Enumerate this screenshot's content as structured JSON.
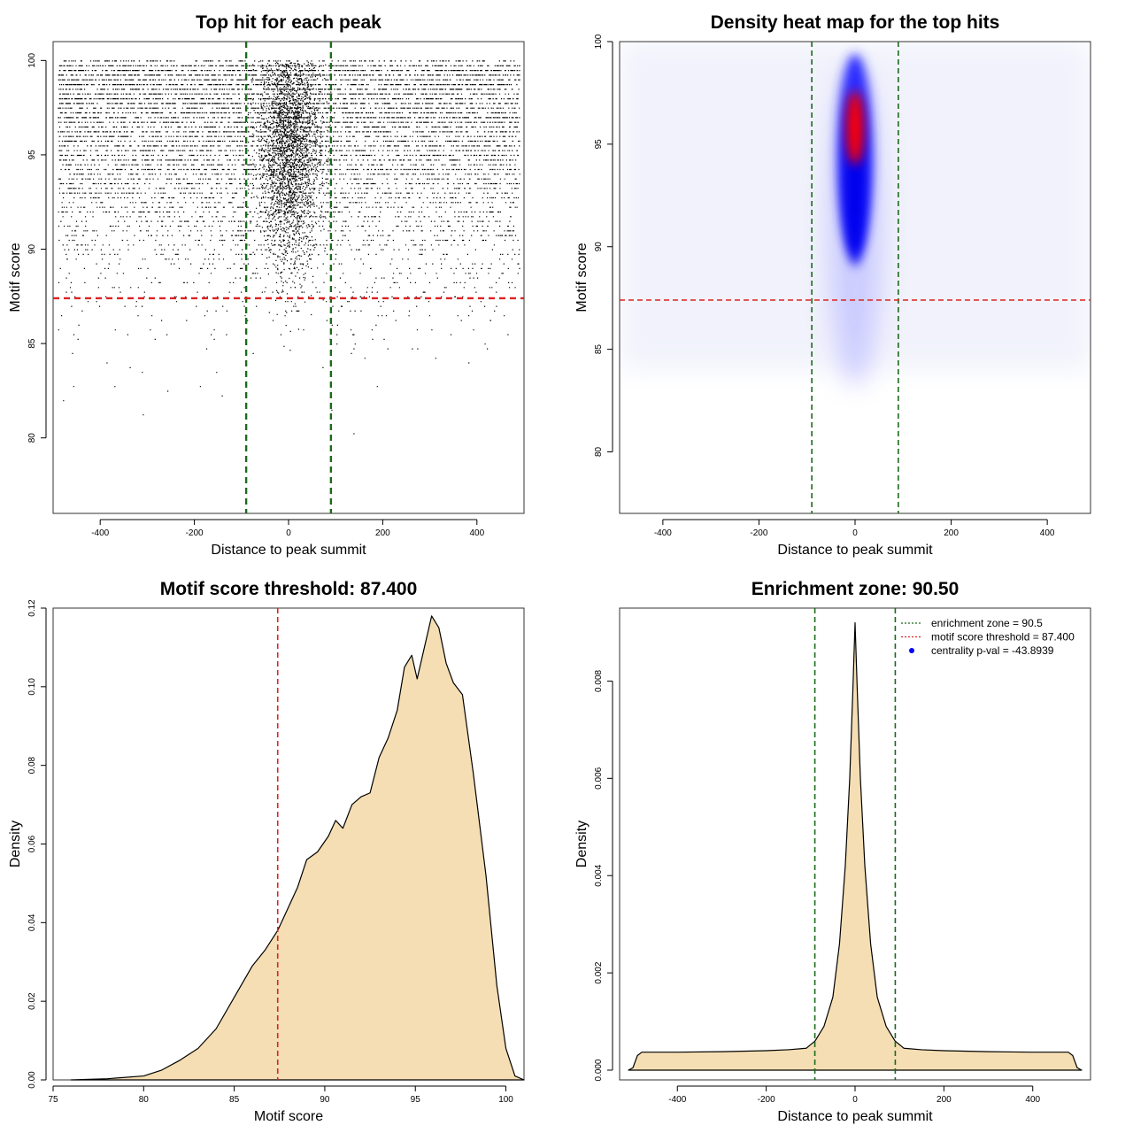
{
  "chart_data": [
    {
      "id": "scatter",
      "type": "scatter",
      "title": "Top hit for each peak",
      "xlabel": "Distance to peak summit",
      "ylabel": "Motif score",
      "xlim": [
        -500,
        500
      ],
      "ylim": [
        76,
        101
      ],
      "xticks": [
        -400,
        -200,
        0,
        200,
        400
      ],
      "yticks": [
        80,
        85,
        90,
        95,
        100
      ],
      "vlines": [
        {
          "x": -90,
          "color": "#1a6b1a"
        },
        {
          "x": 90,
          "color": "#1a6b1a"
        }
      ],
      "hlines": [
        {
          "y": 87.4,
          "color": "#dd2222"
        }
      ],
      "points_description_values": {
        "background_x_range": [
          -490,
          490
        ],
        "background_score_range": [
          78,
          100
        ],
        "central_cluster_x_range": [
          -90,
          90
        ],
        "central_cluster_score_range": [
          84,
          100
        ]
      }
    },
    {
      "id": "heatmap",
      "type": "heatmap",
      "title": "Density heat map for the top hits",
      "xlabel": "Distance to peak summit",
      "ylabel": "Motif score",
      "xlim": [
        -490,
        490
      ],
      "ylim": [
        77,
        100
      ],
      "xticks": [
        -400,
        -200,
        0,
        200,
        400
      ],
      "yticks": [
        80,
        85,
        90,
        95,
        100
      ],
      "vlines": [
        {
          "x": -90,
          "color": "#1a6b1a"
        },
        {
          "x": 90,
          "color": "#1a6b1a"
        }
      ],
      "hlines": [
        {
          "y": 87.4,
          "color": "#dd2222"
        }
      ],
      "hotspot": {
        "x": 0,
        "y": 95.8
      },
      "colors": [
        "#ffffff",
        "#0000ff",
        "#ff0000"
      ]
    },
    {
      "id": "scoredensity",
      "type": "area",
      "title": "Motif score threshold: 87.400",
      "xlabel": "Motif score",
      "ylabel": "Density",
      "xlim": [
        75,
        101
      ],
      "ylim": [
        0,
        0.12
      ],
      "xticks": [
        75,
        80,
        85,
        90,
        95,
        100
      ],
      "yticks": [
        0.0,
        0.02,
        0.04,
        0.06,
        0.08,
        0.1,
        0.12
      ],
      "ytick_labels": [
        "0.00",
        "0.02",
        "0.04",
        "0.06",
        "0.08",
        "0.10",
        "0.12"
      ],
      "vlines": [
        {
          "x": 87.4,
          "color": "#dd2222"
        }
      ],
      "fill": "#f5deb3",
      "x": [
        76,
        78,
        80,
        81,
        82,
        83,
        84,
        85,
        86,
        86.7,
        87.4,
        88,
        88.5,
        89,
        89.6,
        90.2,
        90.6,
        91,
        91.5,
        92,
        92.5,
        93,
        93.5,
        94,
        94.4,
        94.8,
        95.1,
        95.5,
        95.9,
        96.3,
        96.7,
        97.1,
        97.6,
        98.2,
        98.9,
        99.5,
        100,
        100.5,
        101
      ],
      "values": [
        0,
        0.0003,
        0.001,
        0.0025,
        0.005,
        0.008,
        0.013,
        0.021,
        0.029,
        0.033,
        0.038,
        0.044,
        0.049,
        0.056,
        0.058,
        0.062,
        0.066,
        0.064,
        0.07,
        0.072,
        0.073,
        0.082,
        0.087,
        0.094,
        0.105,
        0.108,
        0.102,
        0.11,
        0.118,
        0.115,
        0.106,
        0.101,
        0.098,
        0.078,
        0.052,
        0.024,
        0.008,
        0.001,
        0
      ]
    },
    {
      "id": "enrichment",
      "type": "area",
      "title": "Enrichment zone: 90.50",
      "xlabel": "Distance to peak summit",
      "ylabel": "Density",
      "xlim": [
        -530,
        530
      ],
      "ylim": [
        -0.0002,
        0.0095
      ],
      "xticks": [
        -400,
        -200,
        0,
        200,
        400
      ],
      "yticks": [
        0.0,
        0.002,
        0.004,
        0.006,
        0.008
      ],
      "ytick_labels": [
        "0.000",
        "0.002",
        "0.004",
        "0.006",
        "0.008"
      ],
      "vlines": [
        {
          "x": -90.5,
          "color": "#1a6b1a"
        },
        {
          "x": 90.5,
          "color": "#1a6b1a"
        }
      ],
      "fill": "#f5deb3",
      "x": [
        -510,
        -500,
        -490,
        -480,
        -400,
        -300,
        -200,
        -150,
        -110,
        -90,
        -70,
        -50,
        -35,
        -22,
        -12,
        -5,
        0,
        5,
        12,
        22,
        35,
        50,
        70,
        90,
        110,
        150,
        200,
        300,
        400,
        480,
        490,
        500,
        510
      ],
      "values": [
        0,
        5e-05,
        0.0003,
        0.00037,
        0.00037,
        0.00038,
        0.0004,
        0.00042,
        0.00045,
        0.0006,
        0.0009,
        0.0015,
        0.0026,
        0.0042,
        0.006,
        0.0078,
        0.0092,
        0.0078,
        0.006,
        0.0042,
        0.0026,
        0.0015,
        0.0009,
        0.0006,
        0.00045,
        0.00042,
        0.0004,
        0.00038,
        0.00037,
        0.00037,
        0.0003,
        5e-05,
        0
      ],
      "legend": [
        {
          "label": "enrichment zone = 90.5",
          "kind": "dotline",
          "color": "#1a6b1a"
        },
        {
          "label": "motif score threshold = 87.400",
          "kind": "dotline",
          "color": "#dd2222"
        },
        {
          "label": "centrality p-val = -43.8939",
          "kind": "dot",
          "color": "#0000ff"
        }
      ]
    }
  ]
}
